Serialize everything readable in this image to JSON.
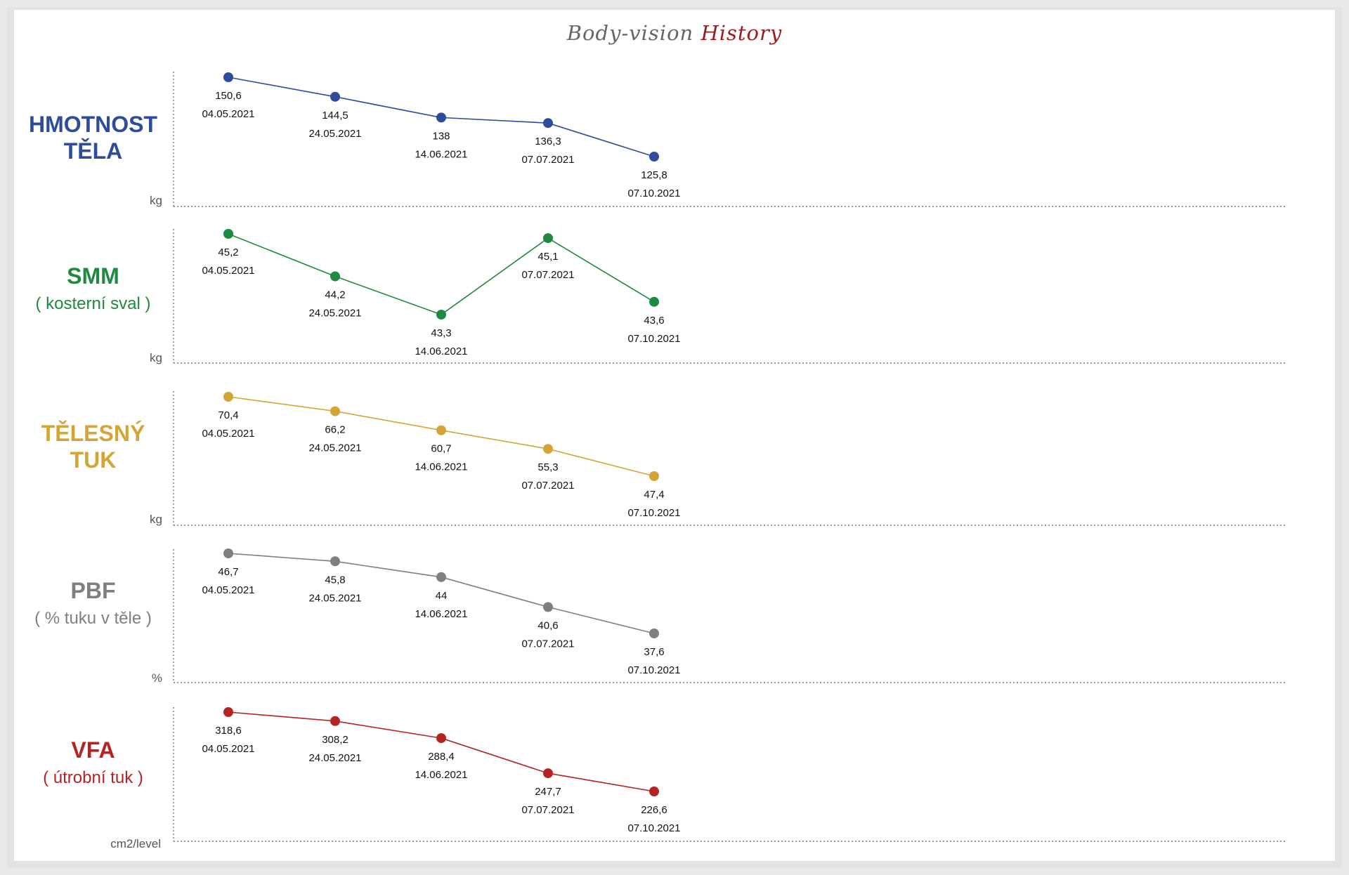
{
  "title": {
    "part1": "Body-vision",
    "part2": "History"
  },
  "chart_data": [
    {
      "type": "line",
      "label": "HMOTNOST TĚLA",
      "sublabel": "",
      "unit": "kg",
      "color": "#2e4c9c",
      "dates": [
        "04.05.2021",
        "24.05.2021",
        "14.06.2021",
        "07.07.2021",
        "07.10.2021"
      ],
      "values": [
        150.6,
        144.5,
        138,
        136.3,
        125.8
      ],
      "value_labels": [
        "150,6",
        "144,5",
        "138",
        "136,3",
        "125,8"
      ],
      "ylim": [
        125.8,
        150.6
      ]
    },
    {
      "type": "line",
      "label": "SMM",
      "sublabel": "( kosterní sval )",
      "unit": "kg",
      "color": "#1e8a3e",
      "dates": [
        "04.05.2021",
        "24.05.2021",
        "14.06.2021",
        "07.07.2021",
        "07.10.2021"
      ],
      "values": [
        45.2,
        44.2,
        43.3,
        45.1,
        43.6
      ],
      "value_labels": [
        "45,2",
        "44,2",
        "43,3",
        "45,1",
        "43,6"
      ],
      "ylim": [
        43.3,
        45.2
      ]
    },
    {
      "type": "line",
      "label": "TĚLESNÝ TUK",
      "sublabel": "",
      "unit": "kg",
      "color": "#d4a535",
      "dates": [
        "04.05.2021",
        "24.05.2021",
        "14.06.2021",
        "07.07.2021",
        "07.10.2021"
      ],
      "values": [
        70.4,
        66.2,
        60.7,
        55.3,
        47.4
      ],
      "value_labels": [
        "70,4",
        "66,2",
        "60,7",
        "55,3",
        "47,4"
      ],
      "ylim": [
        47.4,
        70.4
      ]
    },
    {
      "type": "line",
      "label": "PBF",
      "sublabel": "( % tuku v těle )",
      "unit": "%",
      "color": "#7f7f7f",
      "dates": [
        "04.05.2021",
        "24.05.2021",
        "14.06.2021",
        "07.07.2021",
        "07.10.2021"
      ],
      "values": [
        46.7,
        45.8,
        44,
        40.6,
        37.6
      ],
      "value_labels": [
        "46,7",
        "45,8",
        "44",
        "40,6",
        "37,6"
      ],
      "ylim": [
        37.6,
        46.7
      ]
    },
    {
      "type": "line",
      "label": "VFA",
      "sublabel": "( útrobní tuk )",
      "unit": "cm2/level",
      "color": "#b52424",
      "dates": [
        "04.05.2021",
        "24.05.2021",
        "14.06.2021",
        "07.07.2021",
        "07.10.2021"
      ],
      "values": [
        318.6,
        308.2,
        288.4,
        247.7,
        226.6
      ],
      "value_labels": [
        "318,6",
        "308,2",
        "288,4",
        "247,7",
        "226,6"
      ],
      "ylim": [
        226.6,
        318.6
      ]
    }
  ]
}
